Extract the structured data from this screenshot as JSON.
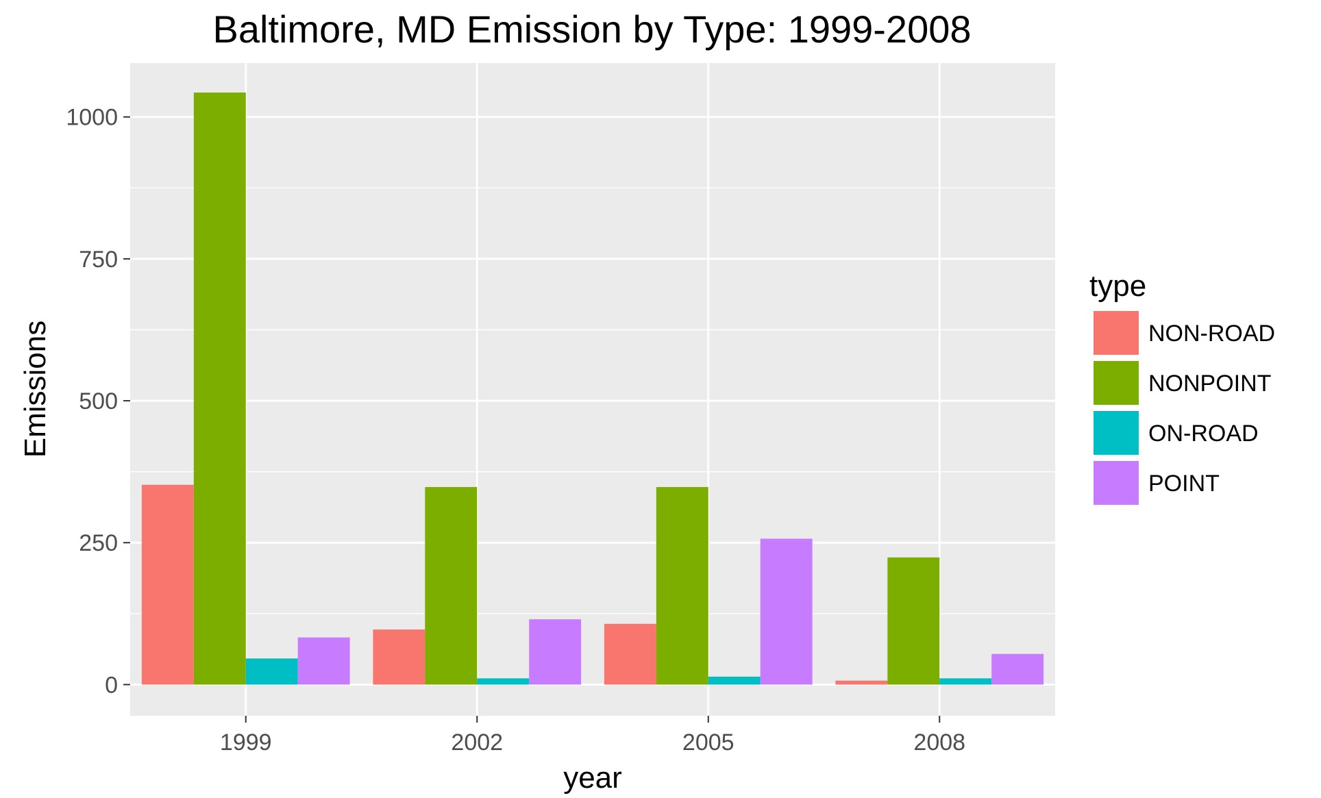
{
  "chart_data": {
    "type": "bar",
    "title": "Baltimore, MD Emission by Type: 1999-2008",
    "xlabel": "year",
    "ylabel": "Emissions",
    "categories": [
      "1999",
      "2002",
      "2005",
      "2008"
    ],
    "ylim": [
      -55,
      1095
    ],
    "yticks": [
      0,
      250,
      500,
      750,
      1000
    ],
    "grid": true,
    "panel_background": "#ebebeb",
    "legend": {
      "title": "type",
      "position": "right"
    },
    "series": [
      {
        "name": "NON-ROAD",
        "color": "#f8766d",
        "values": [
          352,
          97,
          107,
          7
        ]
      },
      {
        "name": "NONPOINT",
        "color": "#7cae00",
        "values": [
          1043,
          348,
          348,
          224
        ]
      },
      {
        "name": "ON-ROAD",
        "color": "#00bfc4",
        "values": [
          46,
          11,
          14,
          11
        ]
      },
      {
        "name": "POINT",
        "color": "#c77cff",
        "values": [
          83,
          115,
          257,
          54
        ]
      }
    ]
  }
}
